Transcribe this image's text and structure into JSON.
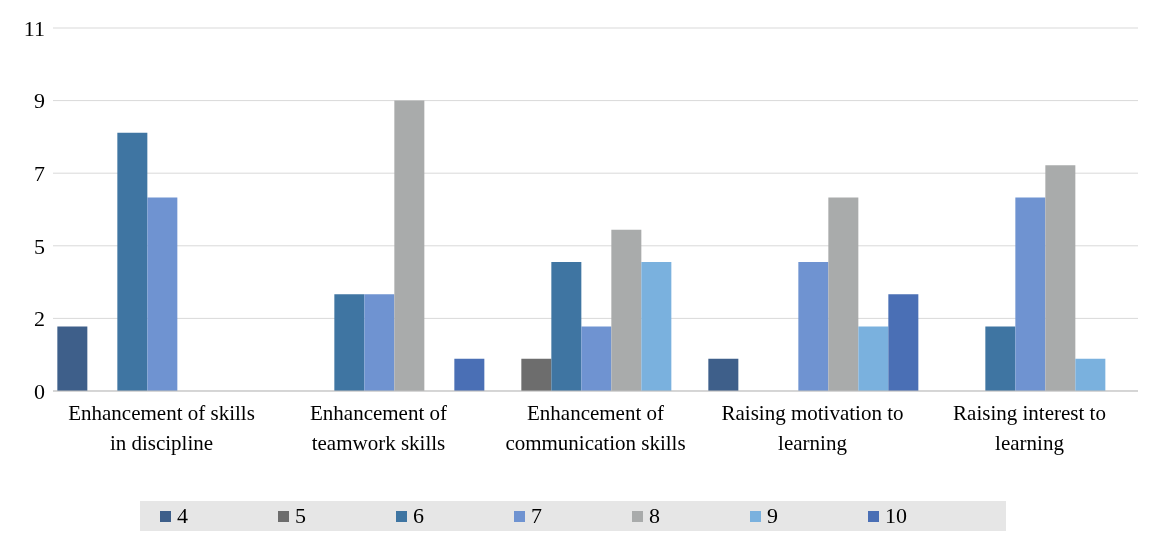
{
  "chart_data": {
    "type": "bar",
    "categories": [
      "Enhancement of skills in discipline",
      "Enhancement of teamwork skills",
      "Enhancement of communication skills",
      "Raising motivation to learning",
      "Raising interest to learning"
    ],
    "series": [
      {
        "name": "4",
        "color": "#3e5f8a",
        "values": [
          2,
          0,
          0,
          1,
          0
        ]
      },
      {
        "name": "5",
        "color": "#6d6d6d",
        "values": [
          0,
          0,
          1,
          0,
          0
        ]
      },
      {
        "name": "6",
        "color": "#3f75a2",
        "values": [
          8,
          3,
          4,
          0,
          2
        ]
      },
      {
        "name": "7",
        "color": "#6f93d1",
        "values": [
          6,
          3,
          2,
          4,
          6
        ]
      },
      {
        "name": "8",
        "color": "#a9abab",
        "values": [
          0,
          9,
          5,
          6,
          7
        ]
      },
      {
        "name": "9",
        "color": "#7ab1de",
        "values": [
          0,
          0,
          4,
          2,
          1
        ]
      },
      {
        "name": "10",
        "color": "#4a6fb5",
        "values": [
          0,
          1,
          0,
          3,
          0
        ]
      }
    ],
    "ylim": [
      0,
      11.25
    ],
    "yticks": [
      0,
      {
        "value": 2.25,
        "label": "2"
      },
      {
        "value": 4.5,
        "label": "5"
      },
      {
        "value": 6.75,
        "label": "7"
      },
      {
        "value": 9,
        "label": "9"
      },
      {
        "value": 11.25,
        "label": "11"
      }
    ],
    "grid": "y",
    "legend": "bottom"
  }
}
